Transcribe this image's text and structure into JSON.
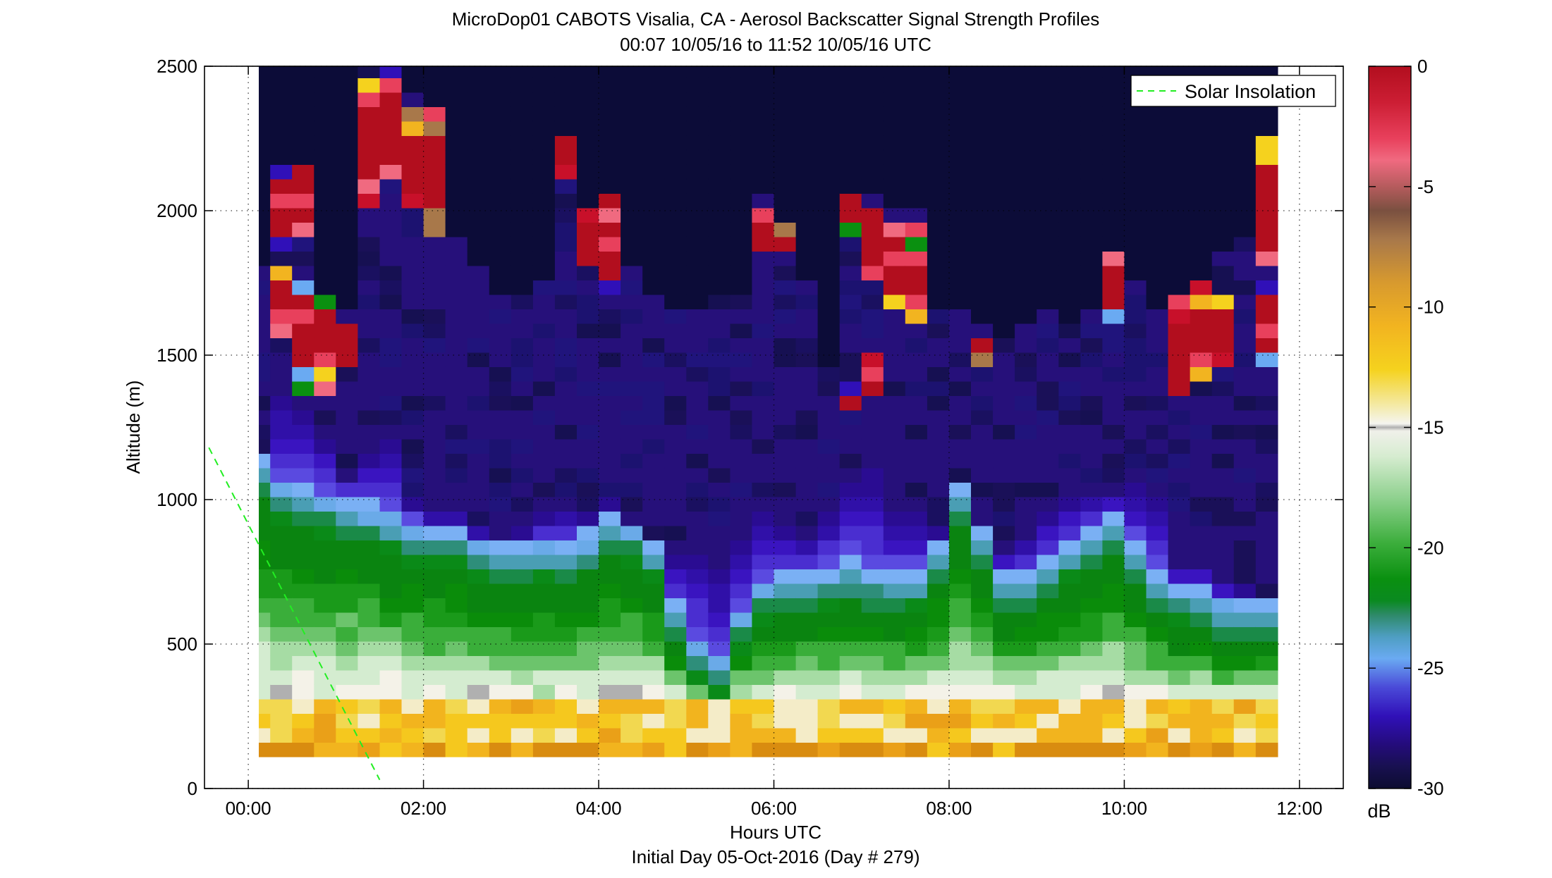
{
  "chart_data": {
    "type": "heatmap",
    "title": "MicroDop01 CABOTS Visalia, CA - Aerosol Backscatter Signal Strength Profiles",
    "subtitle": "00:07 10/05/16 to 11:52 10/05/16  UTC",
    "xlabel": "Hours UTC",
    "xlabel2": "Initial Day 05-Oct-2016 (Day # 279)",
    "ylabel": "Altitude (m)",
    "x_range_hours": [
      -0.5,
      12.5
    ],
    "ylim": [
      0,
      2500
    ],
    "x_ticks": [
      0,
      2,
      4,
      6,
      8,
      10,
      12
    ],
    "x_tick_labels": [
      "00:00",
      "02:00",
      "04:00",
      "06:00",
      "08:00",
      "10:00",
      "12:00"
    ],
    "y_ticks": [
      0,
      500,
      1000,
      1500,
      2000,
      2500
    ],
    "y_tick_labels": [
      "0",
      "500",
      "1000",
      "1500",
      "2000",
      "2500"
    ],
    "grid": true,
    "colorbar": {
      "label": "dB",
      "range": [
        -30,
        0
      ],
      "ticks": [
        0,
        -5,
        -10,
        -15,
        -20,
        -25,
        -30
      ],
      "tick_labels": [
        "0",
        "-5",
        "-10",
        "-15",
        "-20",
        "-25",
        "-30"
      ]
    },
    "legend": {
      "position": "top-right",
      "entries": [
        "Solar Insolation"
      ]
    },
    "solar_insolation_line": {
      "x_hours": [
        -0.45,
        1.5
      ],
      "y_m": [
        1180,
        30
      ],
      "color": "#22ee22",
      "style": "dashed"
    },
    "data_time_range_hours": [
      0.12,
      11.87
    ],
    "data_altitude_range_m": [
      110,
      2500
    ],
    "profile_interval_hours": 0.25,
    "bin_height_m": 50,
    "profiles": [
      {
        "t": 0.25,
        "green_top": 1000,
        "purple_top": 1150,
        "noise_top": 1800
      },
      {
        "t": 0.5,
        "green_top": 920,
        "purple_top": 1400,
        "noise_top": 2150,
        "clouds": [
          [
            1550,
            1800
          ],
          [
            1850,
            2150
          ]
        ]
      },
      {
        "t": 0.75,
        "green_top": 900,
        "purple_top": 1350,
        "noise_top": 2150,
        "clouds": [
          [
            1380,
            1780
          ],
          [
            1900,
            2150
          ]
        ]
      },
      {
        "t": 1.0,
        "green_top": 880,
        "purple_top": 1250,
        "noise_top": 1700,
        "clouds": [
          [
            1380,
            1700
          ]
        ]
      },
      {
        "t": 1.25,
        "green_top": 860,
        "purple_top": 1100,
        "noise_top": 1650,
        "clouds": [
          [
            1450,
            1620
          ]
        ]
      },
      {
        "t": 1.5,
        "green_top": 840,
        "purple_top": 1200,
        "noise_top": 2550,
        "clouds": [
          [
            2000,
            2450
          ]
        ]
      },
      {
        "t": 1.75,
        "green_top": 820,
        "purple_top": 1250,
        "noise_top": 2550,
        "clouds": [
          [
            2100,
            2500
          ]
        ]
      },
      {
        "t": 2.0,
        "green_top": 780,
        "purple_top": 1000,
        "noise_top": 2400,
        "clouds": [
          [
            2000,
            2350
          ]
        ]
      },
      {
        "t": 2.25,
        "green_top": 760,
        "purple_top": 950,
        "noise_top": 2350,
        "clouds": [
          [
            1900,
            2350
          ]
        ]
      },
      {
        "t": 2.5,
        "green_top": 760,
        "purple_top": 950,
        "noise_top": 1900
      },
      {
        "t": 2.75,
        "green_top": 720,
        "purple_top": 900,
        "noise_top": 1800
      },
      {
        "t": 3.0,
        "green_top": 700,
        "purple_top": 880,
        "noise_top": 1700
      },
      {
        "t": 3.25,
        "green_top": 700,
        "purple_top": 900,
        "noise_top": 1700
      },
      {
        "t": 3.5,
        "green_top": 720,
        "purple_top": 950,
        "noise_top": 1750
      },
      {
        "t": 3.75,
        "green_top": 700,
        "purple_top": 1000,
        "noise_top": 2280,
        "clouds": [
          [
            2100,
            2280
          ]
        ]
      },
      {
        "t": 4.0,
        "green_top": 740,
        "purple_top": 950,
        "noise_top": 1950,
        "clouds": [
          [
            1800,
            2000
          ]
        ]
      },
      {
        "t": 4.25,
        "green_top": 800,
        "purple_top": 1000,
        "noise_top": 2050,
        "clouds": [
          [
            1700,
            2050
          ]
        ]
      },
      {
        "t": 4.5,
        "green_top": 780,
        "purple_top": 900,
        "noise_top": 1800
      },
      {
        "t": 4.75,
        "green_top": 700,
        "purple_top": 880,
        "noise_top": 1700
      },
      {
        "t": 5.0,
        "green_top": 500,
        "purple_top": 850,
        "noise_top": 1650
      },
      {
        "t": 5.25,
        "green_top": 380,
        "purple_top": 850,
        "noise_top": 1650
      },
      {
        "t": 5.5,
        "green_top": 320,
        "purple_top": 800,
        "noise_top": 1700
      },
      {
        "t": 5.75,
        "green_top": 480,
        "purple_top": 900,
        "noise_top": 1700
      },
      {
        "t": 6.0,
        "green_top": 580,
        "purple_top": 1000,
        "noise_top": 2050,
        "clouds": [
          [
            1850,
            2000
          ]
        ]
      },
      {
        "t": 6.25,
        "green_top": 600,
        "purple_top": 950,
        "noise_top": 1900,
        "clouds": [
          [
            1850,
            1950
          ]
        ]
      },
      {
        "t": 6.5,
        "green_top": 600,
        "purple_top": 900,
        "noise_top": 1750
      },
      {
        "t": 6.75,
        "green_top": 620,
        "purple_top": 1000,
        "noise_top": 1450
      },
      {
        "t": 7.0,
        "green_top": 640,
        "purple_top": 1100,
        "noise_top": 2080,
        "clouds": [
          [
            1300,
            1400
          ],
          [
            1900,
            2080
          ]
        ]
      },
      {
        "t": 7.25,
        "green_top": 620,
        "purple_top": 1150,
        "noise_top": 2050,
        "clouds": [
          [
            1350,
            1500
          ],
          [
            1750,
            2000
          ]
        ]
      },
      {
        "t": 7.5,
        "green_top": 600,
        "purple_top": 1000,
        "noise_top": 2000,
        "clouds": [
          [
            1650,
            1980
          ]
        ]
      },
      {
        "t": 7.75,
        "green_top": 600,
        "purple_top": 1000,
        "noise_top": 2000,
        "clouds": [
          [
            1600,
            1950
          ]
        ]
      },
      {
        "t": 8.0,
        "green_top": 700,
        "purple_top": 900,
        "noise_top": 1650
      },
      {
        "t": 8.25,
        "green_top": 900,
        "purple_top": 1050,
        "noise_top": 1650
      },
      {
        "t": 8.5,
        "green_top": 750,
        "purple_top": 900,
        "noise_top": 1600,
        "clouds": [
          [
            1480,
            1580
          ]
        ]
      },
      {
        "t": 8.75,
        "green_top": 600,
        "purple_top": 850,
        "noise_top": 1550
      },
      {
        "t": 9.0,
        "green_top": 600,
        "purple_top": 900,
        "noise_top": 1600
      },
      {
        "t": 9.25,
        "green_top": 650,
        "purple_top": 1000,
        "noise_top": 1650
      },
      {
        "t": 9.5,
        "green_top": 700,
        "purple_top": 1050,
        "noise_top": 1600
      },
      {
        "t": 9.75,
        "green_top": 750,
        "purple_top": 1050,
        "noise_top": 1650
      },
      {
        "t": 10.0,
        "green_top": 800,
        "purple_top": 1050,
        "noise_top": 1850,
        "clouds": [
          [
            1600,
            1850
          ]
        ]
      },
      {
        "t": 10.25,
        "green_top": 700,
        "purple_top": 1100,
        "noise_top": 1750
      },
      {
        "t": 10.5,
        "green_top": 600,
        "purple_top": 1050,
        "noise_top": 1650
      },
      {
        "t": 10.75,
        "green_top": 550,
        "purple_top": 800,
        "noise_top": 1700,
        "clouds": [
          [
            1350,
            1700
          ]
        ]
      },
      {
        "t": 11.0,
        "green_top": 550,
        "purple_top": 800,
        "noise_top": 1750,
        "clouds": [
          [
            1400,
            1750
          ]
        ]
      },
      {
        "t": 11.25,
        "green_top": 500,
        "purple_top": 750,
        "noise_top": 1850,
        "clouds": [
          [
            1450,
            1700
          ]
        ]
      },
      {
        "t": 11.5,
        "green_top": 500,
        "purple_top": 700,
        "noise_top": 1900
      },
      {
        "t": 11.75,
        "green_top": 500,
        "purple_top": 650,
        "noise_top": 2250,
        "clouds": [
          [
            1450,
            1750
          ],
          [
            1800,
            2250
          ]
        ]
      }
    ]
  }
}
